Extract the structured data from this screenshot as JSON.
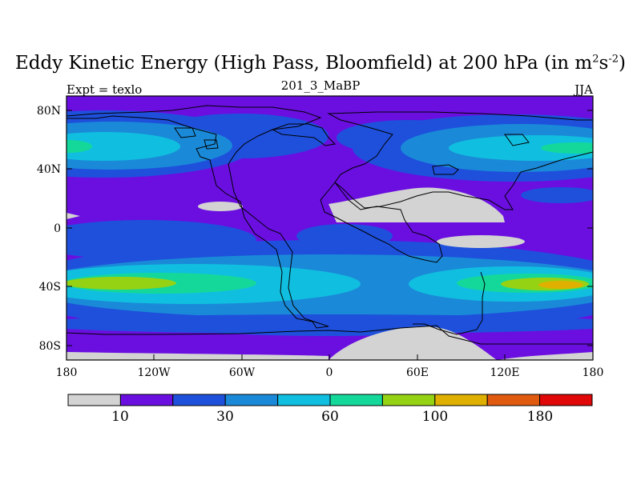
{
  "title_main": "Eddy Kinetic Energy (High Pass, Bloomfield) at 200 hPa (in m",
  "title_sup1": "2",
  "title_mid": "s",
  "title_sup2": "-2",
  "title_end": ")",
  "subtitle": "201_3_MaBP",
  "left_label": "Expt = texlo",
  "right_label": "JJA",
  "y_tick_labels": [
    "80N",
    "40N",
    "0",
    "40S",
    "80S"
  ],
  "x_tick_labels": [
    "180",
    "120W",
    "60W",
    "0",
    "60E",
    "120E",
    "180"
  ],
  "colorbar": {
    "colors": [
      "#d3d3d3",
      "#6a0fe0",
      "#1e50dc",
      "#1a8ad8",
      "#10bfe0",
      "#14d89a",
      "#96d214",
      "#e0b000",
      "#e05a10",
      "#e00808"
    ],
    "labels": [
      "10",
      "30",
      "60",
      "100",
      "180"
    ]
  }
}
